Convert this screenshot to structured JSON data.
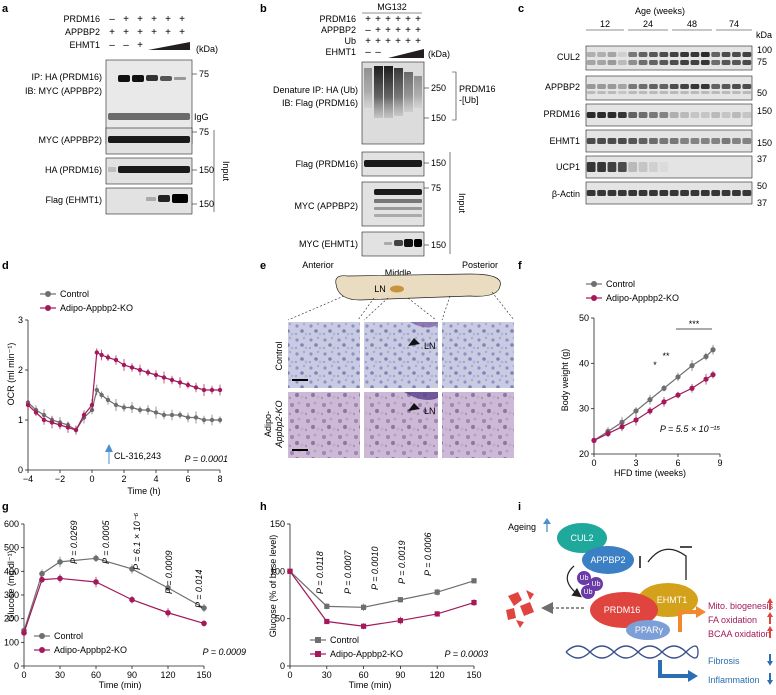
{
  "figure": {
    "panel_letters": [
      "a",
      "b",
      "c",
      "d",
      "e",
      "f",
      "g",
      "h",
      "i"
    ]
  },
  "panel_a": {
    "row_labels": [
      "PRDM16",
      "APPBP2",
      "EHMT1"
    ],
    "row_values": [
      [
        "–",
        "+",
        "+",
        "+",
        "+",
        "+"
      ],
      [
        "+",
        "+",
        "+",
        "+",
        "+",
        "+"
      ],
      [
        "–",
        "–",
        "+",
        "",
        "",
        ""
      ]
    ],
    "kda_label": "(kDa)",
    "blot_labels": [
      "IP: HA (PRDM16)",
      "IB: MYC (APPBP2)",
      "MYC (APPBP2)",
      "HA (PRDM16)",
      "Flag (EHMT1)"
    ],
    "right_labels": [
      "IgG"
    ],
    "markers": [
      "75",
      "75",
      "150",
      "150"
    ],
    "input_label": "Input"
  },
  "panel_b": {
    "title": "MG132",
    "row_labels": [
      "PRDM16",
      "APPBP2",
      "Ub",
      "EHMT1"
    ],
    "row_values": [
      [
        "+",
        "+",
        "+",
        "+",
        "+",
        "+"
      ],
      [
        "–",
        "+",
        "+",
        "+",
        "+",
        "+"
      ],
      [
        "+",
        "+",
        "+",
        "+",
        "+",
        "+"
      ],
      [
        "–",
        "–",
        "",
        "",
        "",
        ""
      ]
    ],
    "kda_label": "(kDa)",
    "blot_labels": [
      "Denature IP: HA (Ub)",
      "IB: Flag (PRDM16)",
      "Flag (PRDM16)",
      "MYC (APPBP2)",
      "MYC (EHMT1)"
    ],
    "right_labels": [
      "PRDM16",
      "-[Ub]"
    ],
    "markers": [
      "250",
      "150",
      "150",
      "75",
      "150"
    ],
    "input_label": "Input"
  },
  "panel_c": {
    "title": "Age (weeks)",
    "ages": [
      "12",
      "24",
      "48",
      "74"
    ],
    "kda_label": "kDa",
    "blot_labels": [
      "CUL2",
      "APPBP2",
      "PRDM16",
      "EHMT1",
      "UCP1",
      "β-Actin"
    ],
    "markers": [
      "100",
      "75",
      "50",
      "150",
      "150",
      "37",
      "50",
      "37"
    ]
  },
  "panel_d": {
    "legend": [
      "Control",
      "Adipo-Appbp2-KO"
    ],
    "xlabel": "Time (h)",
    "ylabel": "OCR (ml min⁻¹)",
    "annotation": "CL-316,243",
    "pvalue": "P = 0.0001"
  },
  "panel_e": {
    "region_labels": [
      "Anterior",
      "Middle",
      "Posterior"
    ],
    "ln_label": "LN",
    "row_labels": [
      "Control",
      "Adipo-",
      "Appbp2-KO"
    ]
  },
  "panel_f": {
    "legend": [
      "Control",
      "Adipo-Appbp2-KO"
    ],
    "xlabel": "HFD time (weeks)",
    "ylabel": "Body weight (g)",
    "sig": [
      "*",
      "**",
      "***"
    ],
    "pvalue": "P = 5.5 × 10⁻¹⁵"
  },
  "panel_g": {
    "legend": [
      "Control",
      "Adipo-Appbp2-KO"
    ],
    "xlabel": "Time (min)",
    "ylabel": "Glucose (mg dl⁻¹)",
    "pvalues": [
      "P = 0.0269",
      "P = 0.0005",
      "P = 6.1 × 10⁻⁶",
      "P = 0.0009",
      "P = 0.014"
    ],
    "pvalue_overall": "P = 0.0009"
  },
  "panel_h": {
    "legend": [
      "Control",
      "Adipo-Appbp2-KO"
    ],
    "xlabel": "Time (min)",
    "ylabel": "Glucose (% of base level)",
    "pvalues": [
      "P = 0.0118",
      "P = 0.0007",
      "P = 0.0010",
      "P = 0.0019",
      "P = 0.0006"
    ],
    "pvalue_overall": "P = 0.0003"
  },
  "panel_i": {
    "proteins": [
      "CUL2",
      "APPBP2",
      "EHMT1",
      "PRDM16",
      "PPARγ"
    ],
    "ub_label": "Ub",
    "ageing_label": "Ageing",
    "outputs_up": [
      "Mito. biogenesis",
      "FA oxidation",
      "BCAA oxidation"
    ],
    "outputs_down": [
      "Fibrosis",
      "Inflammation"
    ]
  },
  "colors": {
    "control": "#6d6e70",
    "ko": "#a3195b",
    "cul2": "#1fa89c",
    "appbp2": "#3b7fc4",
    "ehmt1": "#d4a21a",
    "prdm16": "#e0443e",
    "ppar": "#7b9fd6",
    "arrow_orange": "#f08a2c",
    "arrow_blue": "#2a6fb4"
  },
  "chart_data": [
    {
      "panel": "d",
      "type": "line",
      "xlabel": "Time (h)",
      "ylabel": "OCR (ml min⁻¹)",
      "xlim": [
        -4,
        8
      ],
      "ylim": [
        0,
        3
      ],
      "xticks": [
        -4,
        -2,
        0,
        2,
        4,
        6,
        8
      ],
      "yticks": [
        0,
        1,
        2,
        3
      ],
      "series": [
        {
          "name": "Control",
          "x": [
            -4,
            -3.5,
            -3,
            -2.5,
            -2,
            -1.5,
            -1,
            -0.5,
            0,
            0.3,
            0.6,
            1,
            1.5,
            2,
            2.5,
            3,
            3.5,
            4,
            4.5,
            5,
            5.5,
            6,
            6.5,
            7,
            7.5,
            8
          ],
          "y": [
            1.35,
            1.2,
            1.1,
            1.0,
            0.95,
            0.9,
            0.8,
            1.05,
            1.2,
            1.6,
            1.5,
            1.4,
            1.3,
            1.25,
            1.25,
            1.2,
            1.2,
            1.15,
            1.1,
            1.1,
            1.1,
            1.05,
            1.05,
            1.0,
            1.0,
            1.0
          ]
        },
        {
          "name": "Adipo-Appbp2-KO",
          "x": [
            -4,
            -3.5,
            -3,
            -2.5,
            -2,
            -1.5,
            -1,
            -0.5,
            0,
            0.3,
            0.6,
            1,
            1.5,
            2,
            2.5,
            3,
            3.5,
            4,
            4.5,
            5,
            5.5,
            6,
            6.5,
            7,
            7.5,
            8
          ],
          "y": [
            1.3,
            1.15,
            1.0,
            0.95,
            0.9,
            0.85,
            0.8,
            1.1,
            1.3,
            2.35,
            2.3,
            2.25,
            2.2,
            2.1,
            2.05,
            2.0,
            1.95,
            1.9,
            1.85,
            1.8,
            1.75,
            1.7,
            1.65,
            1.6,
            1.6,
            1.6
          ]
        }
      ]
    },
    {
      "panel": "f",
      "type": "line",
      "xlabel": "HFD time (weeks)",
      "ylabel": "Body weight (g)",
      "xlim": [
        0,
        9
      ],
      "ylim": [
        20,
        50
      ],
      "xticks": [
        0,
        3,
        6,
        9
      ],
      "yticks": [
        20,
        30,
        40,
        50
      ],
      "series": [
        {
          "name": "Control",
          "x": [
            0,
            1,
            2,
            3,
            4,
            5,
            6,
            7,
            8,
            8.5
          ],
          "y": [
            23,
            25,
            27,
            29.5,
            32,
            34.5,
            37,
            39.5,
            41.5,
            43
          ]
        },
        {
          "name": "Adipo-Appbp2-KO",
          "x": [
            0,
            1,
            2,
            3,
            4,
            5,
            6,
            7,
            8,
            8.5
          ],
          "y": [
            23,
            24.5,
            26,
            27.5,
            29.5,
            31.5,
            33,
            34.5,
            36.5,
            37.5
          ]
        }
      ]
    },
    {
      "panel": "g",
      "type": "line",
      "xlabel": "Time (min)",
      "ylabel": "Glucose (mg dl⁻¹)",
      "xlim": [
        0,
        150
      ],
      "ylim": [
        0,
        600
      ],
      "xticks": [
        0,
        30,
        60,
        90,
        120,
        150
      ],
      "yticks": [
        0,
        100,
        200,
        300,
        400,
        500,
        600
      ],
      "series": [
        {
          "name": "Control",
          "x": [
            0,
            15,
            30,
            60,
            90,
            120,
            150
          ],
          "y": [
            150,
            390,
            440,
            455,
            410,
            330,
            245
          ]
        },
        {
          "name": "Adipo-Appbp2-KO",
          "x": [
            0,
            15,
            30,
            60,
            90,
            120,
            150
          ],
          "y": [
            140,
            365,
            370,
            355,
            280,
            225,
            180
          ]
        }
      ]
    },
    {
      "panel": "h",
      "type": "line",
      "xlabel": "Time (min)",
      "ylabel": "Glucose (% of base level)",
      "xlim": [
        0,
        150
      ],
      "ylim": [
        0,
        150
      ],
      "xticks": [
        0,
        30,
        60,
        90,
        120,
        150
      ],
      "yticks": [
        0,
        50,
        100,
        150
      ],
      "series": [
        {
          "name": "Control",
          "x": [
            0,
            30,
            60,
            90,
            120,
            150
          ],
          "y": [
            100,
            63,
            62,
            70,
            78,
            90
          ]
        },
        {
          "name": "Adipo-Appbp2-KO",
          "x": [
            0,
            30,
            60,
            90,
            120,
            150
          ],
          "y": [
            100,
            47,
            42,
            48,
            55,
            67
          ]
        }
      ]
    }
  ]
}
